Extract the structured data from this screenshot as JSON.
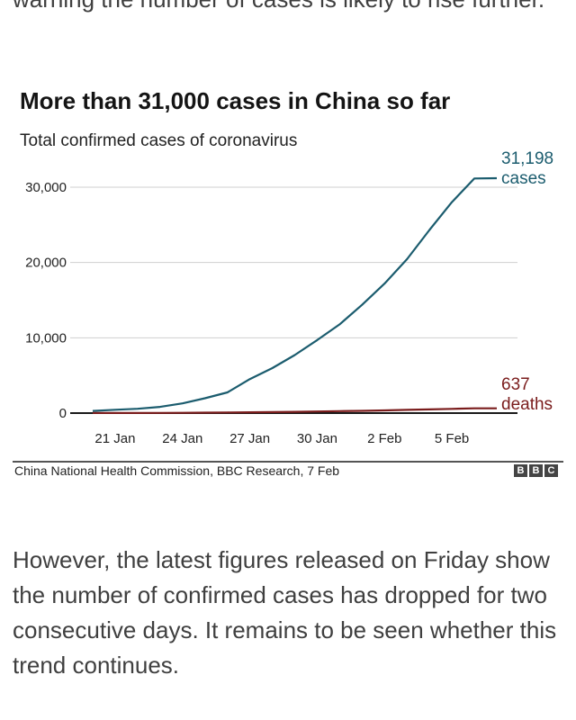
{
  "article": {
    "top_text": "warning the number of cases is likely to rise further.",
    "bottom_text": "However, the latest figures released on Friday show the number of confirmed cases has dropped for two consecutive days. It remains to be seen whether this trend continues."
  },
  "chart_data": {
    "type": "line",
    "title": "More than 31,000 cases in China so far",
    "subtitle": "Total confirmed cases of coronavirus",
    "x": [
      "2020-01-20",
      "2020-01-21",
      "2020-01-22",
      "2020-01-23",
      "2020-01-24",
      "2020-01-25",
      "2020-01-26",
      "2020-01-27",
      "2020-01-28",
      "2020-01-29",
      "2020-01-30",
      "2020-01-31",
      "2020-02-01",
      "2020-02-02",
      "2020-02-03",
      "2020-02-04",
      "2020-02-05",
      "2020-02-06",
      "2020-02-07"
    ],
    "x_ticks": [
      {
        "date": "2020-01-21",
        "label": "21 Jan"
      },
      {
        "date": "2020-01-24",
        "label": "24 Jan"
      },
      {
        "date": "2020-01-27",
        "label": "27 Jan"
      },
      {
        "date": "2020-01-30",
        "label": "30 Jan"
      },
      {
        "date": "2020-02-02",
        "label": "2 Feb"
      },
      {
        "date": "2020-02-05",
        "label": "5 Feb"
      }
    ],
    "y_ticks": [
      {
        "value": 0,
        "label": "0"
      },
      {
        "value": 10000,
        "label": "10,000"
      },
      {
        "value": 20000,
        "label": "20,000"
      },
      {
        "value": 30000,
        "label": "30,000"
      }
    ],
    "ylim": [
      0,
      31198
    ],
    "grid": true,
    "series": [
      {
        "name": "cases",
        "color": "#1b5c6e",
        "end_label": [
          "31,198",
          "cases"
        ],
        "values": [
          291,
          440,
          571,
          830,
          1287,
          1975,
          2744,
          4515,
          5974,
          7711,
          9692,
          11791,
          14380,
          17205,
          20438,
          24324,
          28018,
          31161,
          31198
        ]
      },
      {
        "name": "deaths",
        "color": "#7a1c1c",
        "end_label": [
          "637",
          "deaths"
        ],
        "values": [
          6,
          9,
          17,
          25,
          41,
          56,
          80,
          106,
          132,
          170,
          213,
          259,
          304,
          361,
          425,
          490,
          563,
          636,
          637
        ]
      }
    ]
  },
  "source": "China National Health Commission, BBC Research, 7 Feb",
  "logo_letters": [
    "B",
    "B",
    "C"
  ]
}
